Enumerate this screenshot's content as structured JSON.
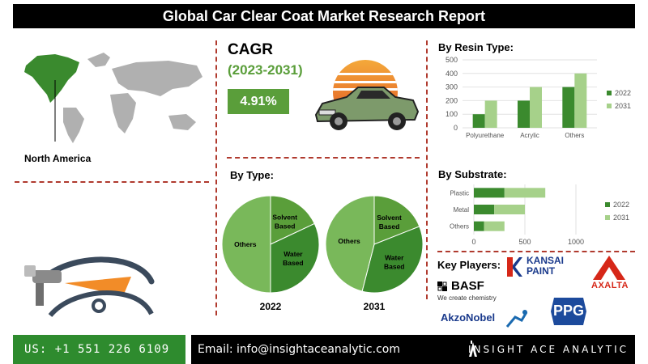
{
  "header": {
    "title": "Global Car Clear Coat Market Research Report"
  },
  "region": {
    "label": "North America",
    "highlight_color": "#3a8a2e",
    "map_color": "#b0b0b0"
  },
  "cagr": {
    "title": "CAGR",
    "period": "(2023-2031)",
    "value": "4.91%",
    "accent": "#5a9e3a"
  },
  "players": {
    "title": "Key Players:",
    "logos": {
      "kansai": "KANSAI PAINT",
      "axalta": "AXALTA",
      "basf": "BASF",
      "basf_tag": "We create chemistry",
      "akzo": "AkzoNobel",
      "ppg": "PPG"
    }
  },
  "footer": {
    "phone": "US: +1 551 226 6109",
    "email": "Email: info@insightaceanalytic.com",
    "brand": "INSIGHT ACE ANALYTIC"
  },
  "colors": {
    "dark_green": "#3b8a2e",
    "light_green": "#a6d18a",
    "mid_green": "#5a9e3a",
    "pie_light": "#79b85a"
  },
  "chart_data": [
    {
      "id": "resin",
      "type": "bar",
      "title": "By Resin Type:",
      "categories": [
        "Polyurethane",
        "Acrylic",
        "Others"
      ],
      "series": [
        {
          "name": "2022",
          "values": [
            100,
            200,
            300
          ]
        },
        {
          "name": "2031",
          "values": [
            200,
            300,
            400
          ]
        }
      ],
      "ylim": [
        0,
        500
      ],
      "yticks": [
        0,
        100,
        200,
        300,
        400,
        500
      ],
      "legend": "right"
    },
    {
      "id": "substrate",
      "type": "bar",
      "orientation": "horizontal",
      "title": "By Substrate:",
      "categories": [
        "Plastic",
        "Metal",
        "Others"
      ],
      "series": [
        {
          "name": "2022",
          "values": [
            300,
            200,
            100
          ]
        },
        {
          "name": "2031",
          "values": [
            400,
            300,
            200
          ]
        }
      ],
      "stacked": true,
      "xlim": [
        0,
        1000
      ],
      "xticks": [
        0,
        500,
        1000
      ],
      "legend": "right"
    },
    {
      "id": "type",
      "type": "pie",
      "title": "By Type:",
      "pies": [
        {
          "label": "2022",
          "slices": [
            {
              "name": "Others",
              "value": 50
            },
            {
              "name": "Water Based",
              "value": 32
            },
            {
              "name": "Solvent Based",
              "value": 18
            }
          ]
        },
        {
          "label": "2031",
          "slices": [
            {
              "name": "Others",
              "value": 46
            },
            {
              "name": "Water Based",
              "value": 35
            },
            {
              "name": "Solvent Based",
              "value": 19
            }
          ]
        }
      ]
    }
  ]
}
